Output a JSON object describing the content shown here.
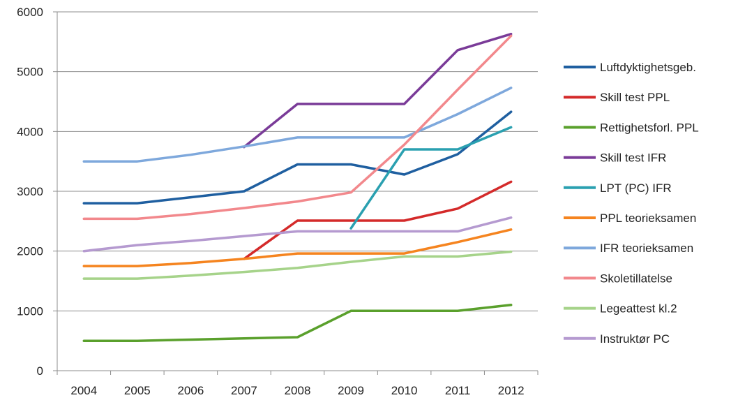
{
  "chart_data": {
    "type": "line",
    "title": "",
    "xlabel": "",
    "ylabel": "",
    "x": [
      "2004",
      "2005",
      "2006",
      "2007",
      "2008",
      "2009",
      "2010",
      "2011",
      "2012"
    ],
    "yticks": [
      "0",
      "1000",
      "2000",
      "3000",
      "4000",
      "5000",
      "6000"
    ],
    "ylim": [
      0,
      6000
    ],
    "grid": "horizontal",
    "legend_position": "right",
    "series": [
      {
        "name": "Luftdyktighetsgeb.",
        "color": "#1f5fa0",
        "values": [
          2800,
          2800,
          2900,
          3000,
          3450,
          3450,
          3280,
          3620,
          4330
        ]
      },
      {
        "name": "Skill test  PPL",
        "color": "#d42a2a",
        "values": [
          null,
          null,
          null,
          1870,
          2510,
          2510,
          2510,
          2710,
          3160
        ]
      },
      {
        "name": "Rettighetsforl. PPL",
        "color": "#5aa02c",
        "values": [
          500,
          500,
          520,
          540,
          560,
          1000,
          1000,
          1000,
          1100
        ]
      },
      {
        "name": "Skill test  IFR",
        "color": "#7a3b98",
        "values": [
          null,
          null,
          null,
          3740,
          4460,
          4460,
          4460,
          5360,
          5630
        ]
      },
      {
        "name": "LPT (PC) IFR",
        "color": "#2aa0b0",
        "values": [
          null,
          null,
          null,
          null,
          null,
          2380,
          3700,
          3700,
          4070
        ]
      },
      {
        "name": "PPL teorieksamen",
        "color": "#f5841f",
        "values": [
          1750,
          1750,
          1800,
          1870,
          1960,
          1960,
          1960,
          2150,
          2360
        ]
      },
      {
        "name": "IFR teorieksamen",
        "color": "#7ea8dc",
        "values": [
          3500,
          3500,
          3610,
          3750,
          3900,
          3900,
          3900,
          4290,
          4730
        ]
      },
      {
        "name": "Skoletillatelse",
        "color": "#f2888c",
        "values": [
          2540,
          2540,
          2620,
          2720,
          2830,
          2980,
          3780,
          4700,
          5600
        ]
      },
      {
        "name": "Legeattest kl.2",
        "color": "#a6d38a",
        "values": [
          1540,
          1540,
          1590,
          1650,
          1720,
          1820,
          1910,
          1910,
          1990
        ]
      },
      {
        "name": "Instruktør PC",
        "color": "#b59ad0",
        "values": [
          2000,
          2100,
          2170,
          2250,
          2330,
          2330,
          2330,
          2330,
          2560
        ]
      }
    ]
  }
}
